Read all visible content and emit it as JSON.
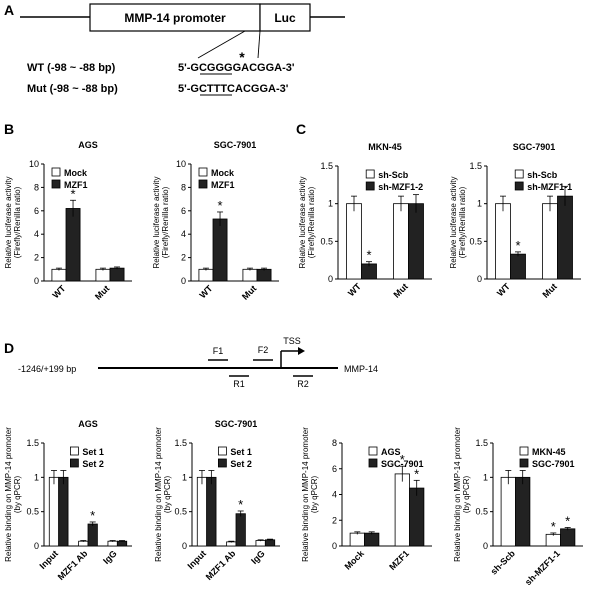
{
  "panel_a": {
    "label": "A",
    "promoter_label": "MMP-14 promoter",
    "reporter_label": "Luc",
    "wt_label": "WT  (-98 ~ -88 bp)",
    "mut_label": "Mut (-98 ~ -88 bp)",
    "wt_seq": "5'-GCGGGGACGGA-3'",
    "mut_seq": "5'-GCTTTCACGGA-3'",
    "asterisk": "*"
  },
  "panel_b": {
    "label": "B"
  },
  "panel_c": {
    "label": "C"
  },
  "panel_d": {
    "label": "D",
    "map_range": "-1246/+199 bp",
    "gene": "MMP-14",
    "tss": "TSS",
    "primers": [
      "F1",
      "F2",
      "R1",
      "R2"
    ]
  },
  "colors": {
    "open_bar": "#ffffff",
    "filled_bar": "#222222",
    "axis": "#000000"
  },
  "chart_data": [
    {
      "id": "b1",
      "type": "bar",
      "title": "AGS",
      "ylabel": "Relative luciferase activity (Firefly/Renilla ratio)",
      "ylim": [
        0,
        10
      ],
      "yticks": [
        0,
        2,
        4,
        6,
        8,
        10
      ],
      "categories": [
        "WT",
        "Mut"
      ],
      "legend": "top-left",
      "series": [
        {
          "name": "Mock",
          "values": [
            1.0,
            1.0
          ],
          "errors": [
            0.1,
            0.1
          ]
        },
        {
          "name": "MZF1",
          "values": [
            6.2,
            1.1
          ],
          "errors": [
            0.7,
            0.1
          ]
        }
      ],
      "annotations": [
        {
          "category": "WT",
          "series": "MZF1",
          "text": "*"
        }
      ]
    },
    {
      "id": "b2",
      "type": "bar",
      "title": "SGC-7901",
      "ylabel": "Relative luciferase activity (Firefly/Renilla ratio)",
      "ylim": [
        0,
        10
      ],
      "yticks": [
        0,
        2,
        4,
        6,
        8,
        10
      ],
      "categories": [
        "WT",
        "Mut"
      ],
      "legend": "top-left",
      "series": [
        {
          "name": "Mock",
          "values": [
            1.0,
            1.0
          ],
          "errors": [
            0.1,
            0.1
          ]
        },
        {
          "name": "MZF1",
          "values": [
            5.3,
            1.0
          ],
          "errors": [
            0.6,
            0.1
          ]
        }
      ],
      "annotations": [
        {
          "category": "WT",
          "series": "MZF1",
          "text": "*"
        }
      ]
    },
    {
      "id": "c1",
      "type": "bar",
      "title": "MKN-45",
      "ylabel": "Relative luciferase activity (Firefly/Renilla ratio)",
      "ylim": [
        0,
        1.5
      ],
      "yticks": [
        0,
        0.5,
        1,
        1.5
      ],
      "categories": [
        "WT",
        "Mut"
      ],
      "legend": "top-right",
      "series": [
        {
          "name": "sh-Scb",
          "values": [
            1.0,
            1.0
          ],
          "errors": [
            0.1,
            0.1
          ]
        },
        {
          "name": "sh-MZF1-2",
          "values": [
            0.2,
            1.0
          ],
          "errors": [
            0.03,
            0.12
          ]
        }
      ],
      "annotations": [
        {
          "category": "WT",
          "series": "sh-MZF1-2",
          "text": "*"
        }
      ]
    },
    {
      "id": "c2",
      "type": "bar",
      "title": "SGC-7901",
      "ylabel": "Relative luciferase activity (Firefly/Renilla ratio)",
      "ylim": [
        0,
        1.5
      ],
      "yticks": [
        0,
        0.5,
        1,
        1.5
      ],
      "categories": [
        "WT",
        "Mut"
      ],
      "legend": "top-right",
      "series": [
        {
          "name": "sh-Scb",
          "values": [
            1.0,
            1.0
          ],
          "errors": [
            0.1,
            0.1
          ]
        },
        {
          "name": "sh-MZF1-1",
          "values": [
            0.33,
            1.1
          ],
          "errors": [
            0.03,
            0.13
          ]
        }
      ],
      "annotations": [
        {
          "category": "WT",
          "series": "sh-MZF1-1",
          "text": "*"
        }
      ]
    },
    {
      "id": "d1",
      "type": "bar",
      "title": "AGS",
      "ylabel": "Relative binding on MMP-14 promoter (by qPCR)",
      "ylim": [
        0,
        1.5
      ],
      "yticks": [
        0,
        0.5,
        1,
        1.5
      ],
      "categories": [
        "Input",
        "MZF1 Ab",
        "IgG"
      ],
      "legend": "top-right",
      "series": [
        {
          "name": "Set 1",
          "values": [
            1.0,
            0.07,
            0.07
          ],
          "errors": [
            0.1,
            0.01,
            0.01
          ]
        },
        {
          "name": "Set 2",
          "values": [
            1.0,
            0.32,
            0.07
          ],
          "errors": [
            0.1,
            0.03,
            0.01
          ]
        }
      ],
      "annotations": [
        {
          "category": "MZF1 Ab",
          "series": "Set 2",
          "text": "*"
        }
      ]
    },
    {
      "id": "d2",
      "type": "bar",
      "title": "SGC-7901",
      "ylabel": "Relative binding on MMP-14 promoter (by qPCR)",
      "ylim": [
        0,
        1.5
      ],
      "yticks": [
        0,
        0.5,
        1,
        1.5
      ],
      "categories": [
        "Input",
        "MZF1 Ab",
        "IgG"
      ],
      "legend": "top-right",
      "series": [
        {
          "name": "Set 1",
          "values": [
            1.0,
            0.06,
            0.08
          ],
          "errors": [
            0.1,
            0.01,
            0.01
          ]
        },
        {
          "name": "Set 2",
          "values": [
            1.0,
            0.47,
            0.09
          ],
          "errors": [
            0.1,
            0.04,
            0.01
          ]
        }
      ],
      "annotations": [
        {
          "category": "MZF1 Ab",
          "series": "Set 2",
          "text": "*"
        }
      ]
    },
    {
      "id": "d3",
      "type": "bar",
      "title": "",
      "ylabel": "Relative binding on MMP-14 promoter (by qPCR)",
      "ylim": [
        0,
        8
      ],
      "yticks": [
        0,
        2,
        4,
        6,
        8
      ],
      "categories": [
        "Mock",
        "MZF1"
      ],
      "legend": "top-right",
      "series": [
        {
          "name": "AGS",
          "values": [
            1.0,
            5.6
          ],
          "errors": [
            0.1,
            0.6
          ]
        },
        {
          "name": "SGC-7901",
          "values": [
            1.0,
            4.5
          ],
          "errors": [
            0.1,
            0.6
          ]
        }
      ],
      "annotations": [
        {
          "category": "MZF1",
          "series": "AGS",
          "text": "*"
        },
        {
          "category": "MZF1",
          "series": "SGC-7901",
          "text": "*"
        }
      ]
    },
    {
      "id": "d4",
      "type": "bar",
      "title": "",
      "ylabel": "Relative binding on MMP-14 promoter (by qPCR)",
      "ylim": [
        0,
        1.5
      ],
      "yticks": [
        0,
        0.5,
        1,
        1.5
      ],
      "categories": [
        "sh-Scb",
        "sh-MZF1-1"
      ],
      "legend": "top-right",
      "series": [
        {
          "name": "MKN-45",
          "values": [
            1.0,
            0.17
          ],
          "errors": [
            0.1,
            0.02
          ]
        },
        {
          "name": "SGC-7901",
          "values": [
            1.0,
            0.25
          ],
          "errors": [
            0.1,
            0.02
          ]
        }
      ],
      "annotations": [
        {
          "category": "sh-MZF1-1",
          "series": "MKN-45",
          "text": "*"
        },
        {
          "category": "sh-MZF1-1",
          "series": "SGC-7901",
          "text": "*"
        }
      ]
    }
  ]
}
